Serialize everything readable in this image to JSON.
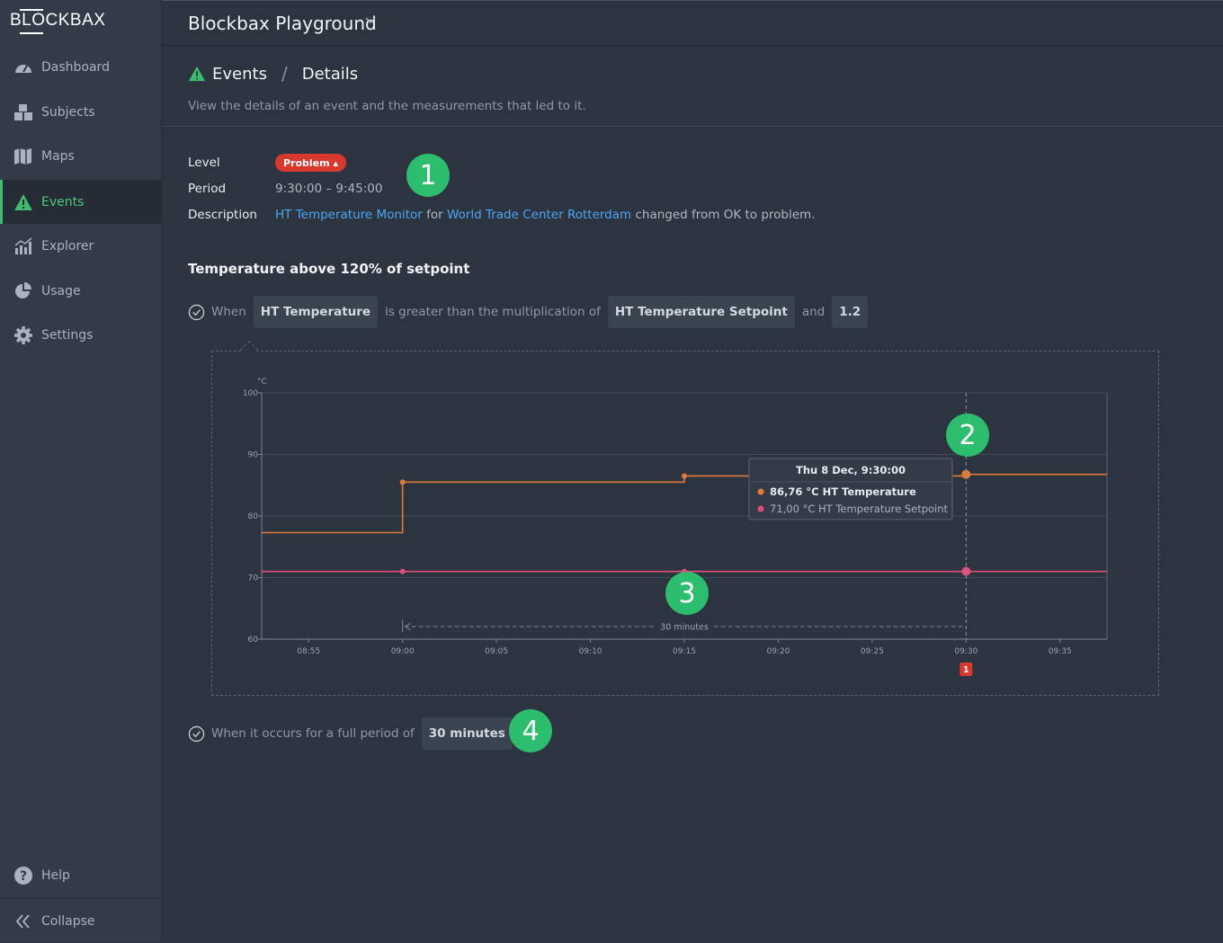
{
  "sidebar": {
    "logo": "BLOCKBAX",
    "items": [
      {
        "label": "Dashboard",
        "icon": "gauge-icon"
      },
      {
        "label": "Subjects",
        "icon": "blocks-icon"
      },
      {
        "label": "Maps",
        "icon": "map-icon"
      },
      {
        "label": "Events",
        "icon": "warning-icon"
      },
      {
        "label": "Explorer",
        "icon": "chart-icon"
      },
      {
        "label": "Usage",
        "icon": "pie-icon"
      },
      {
        "label": "Settings",
        "icon": "gear-icon"
      }
    ],
    "help": "Help",
    "collapse": "Collapse"
  },
  "topbar": {
    "title": "Blockbax Playground"
  },
  "header": {
    "crumb_1": "Events",
    "crumb_sep": "/",
    "crumb_2": "Details",
    "subtitle": "View the details of an event and the measurements that led to it."
  },
  "event": {
    "level_label": "Level",
    "level_value": "Problem ▴",
    "period_label": "Period",
    "period_value": "9:30:00 – 9:45:00",
    "description_label": "Description",
    "desc_link1": "HT Temperature Monitor",
    "desc_for": " for ",
    "desc_link2": "World Trade Center Rotterdam",
    "desc_rest": " changed from OK to problem."
  },
  "rule": {
    "title": "Temperature above 120% of setpoint",
    "when": "When",
    "metric1": "HT Temperature",
    "op": "is greater than the multiplication of",
    "metric2": "HT Temperature Setpoint",
    "and": "and",
    "factor": "1.2",
    "duration_text": "When it occurs for a full period of",
    "duration_value": "30 minutes"
  },
  "callouts": [
    "1",
    "2",
    "3",
    "4"
  ],
  "colors": {
    "accent": "#2dbd6e",
    "problem": "#d9382f",
    "temp": "#e07a3a",
    "setpoint": "#e04f7b",
    "link": "#4ea5f5"
  },
  "chart_data": {
    "type": "line",
    "ylabel": "°C",
    "ylim": [
      60,
      100
    ],
    "yticks": [
      60,
      70,
      80,
      90,
      100
    ],
    "xticks": [
      "08:55",
      "09:00",
      "09:05",
      "09:10",
      "09:15",
      "09:20",
      "09:25",
      "09:30",
      "09:35"
    ],
    "xrange_minutes": [
      52.5,
      97.5
    ],
    "series": [
      {
        "name": "HT Temperature",
        "color": "#e07a3a",
        "step": true,
        "points": [
          [
            52.5,
            77.3
          ],
          [
            60,
            85.5
          ],
          [
            75,
            86.5
          ],
          [
            90,
            86.76
          ],
          [
            97.5,
            86.76
          ]
        ],
        "markers": [
          60,
          75,
          90
        ]
      },
      {
        "name": "HT Temperature Setpoint",
        "color": "#e04f7b",
        "step": true,
        "points": [
          [
            52.5,
            71
          ],
          [
            60,
            71
          ],
          [
            75,
            71
          ],
          [
            90,
            71
          ],
          [
            97.5,
            71
          ]
        ],
        "markers": [
          60,
          75,
          90
        ]
      }
    ],
    "tooltip": {
      "title": "Thu 8 Dec, 9:30:00",
      "line1": "86,76 °C HT Temperature",
      "line2": "71,00 °C HT Temperature Setpoint"
    },
    "cursor_minute": 90,
    "duration_label": "30 minutes",
    "duration_span": [
      60,
      90
    ],
    "event_marker": "1"
  }
}
